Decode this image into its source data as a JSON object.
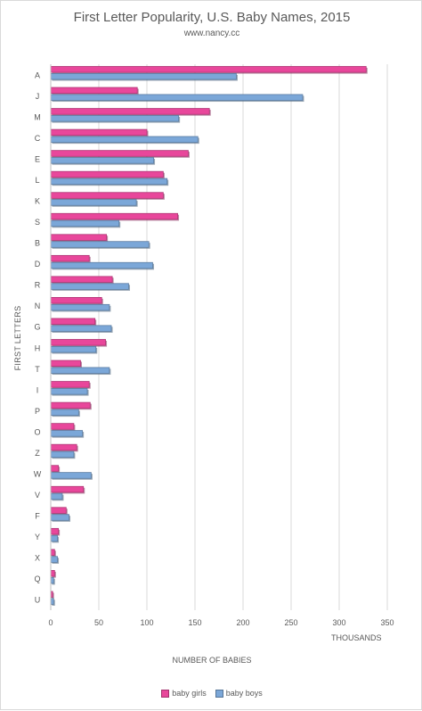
{
  "chart_data": {
    "type": "bar",
    "orientation": "horizontal",
    "title": "First Letter Popularity, U.S. Baby Names, 2015",
    "subtitle": "www.nancy.cc",
    "ylabel": "FIRST LETTERS",
    "xlabel": "NUMBER OF BABIES",
    "units_label": "THOUSANDS",
    "xlim": [
      0,
      350
    ],
    "xticks": [
      0,
      50,
      100,
      150,
      200,
      250,
      300,
      350
    ],
    "grid": "vertical",
    "legend_position": "bottom",
    "categories": [
      "A",
      "J",
      "M",
      "C",
      "E",
      "L",
      "K",
      "S",
      "B",
      "D",
      "R",
      "N",
      "G",
      "H",
      "T",
      "I",
      "P",
      "O",
      "Z",
      "W",
      "V",
      "F",
      "Y",
      "X",
      "Q",
      "U"
    ],
    "series": [
      {
        "name": "baby girls",
        "color": "#e8479b",
        "values": [
          328,
          90,
          165,
          100,
          143,
          117,
          117,
          132,
          58,
          40,
          64,
          53,
          46,
          57,
          31,
          40,
          41,
          24,
          27,
          8,
          34,
          16,
          8,
          4,
          4,
          2
        ]
      },
      {
        "name": "baby boys",
        "color": "#7ba7d8",
        "values": [
          193,
          262,
          133,
          153,
          107,
          121,
          89,
          71,
          102,
          106,
          81,
          61,
          63,
          47,
          61,
          38,
          29,
          33,
          24,
          42,
          12,
          19,
          7,
          7,
          3,
          3
        ]
      }
    ]
  }
}
